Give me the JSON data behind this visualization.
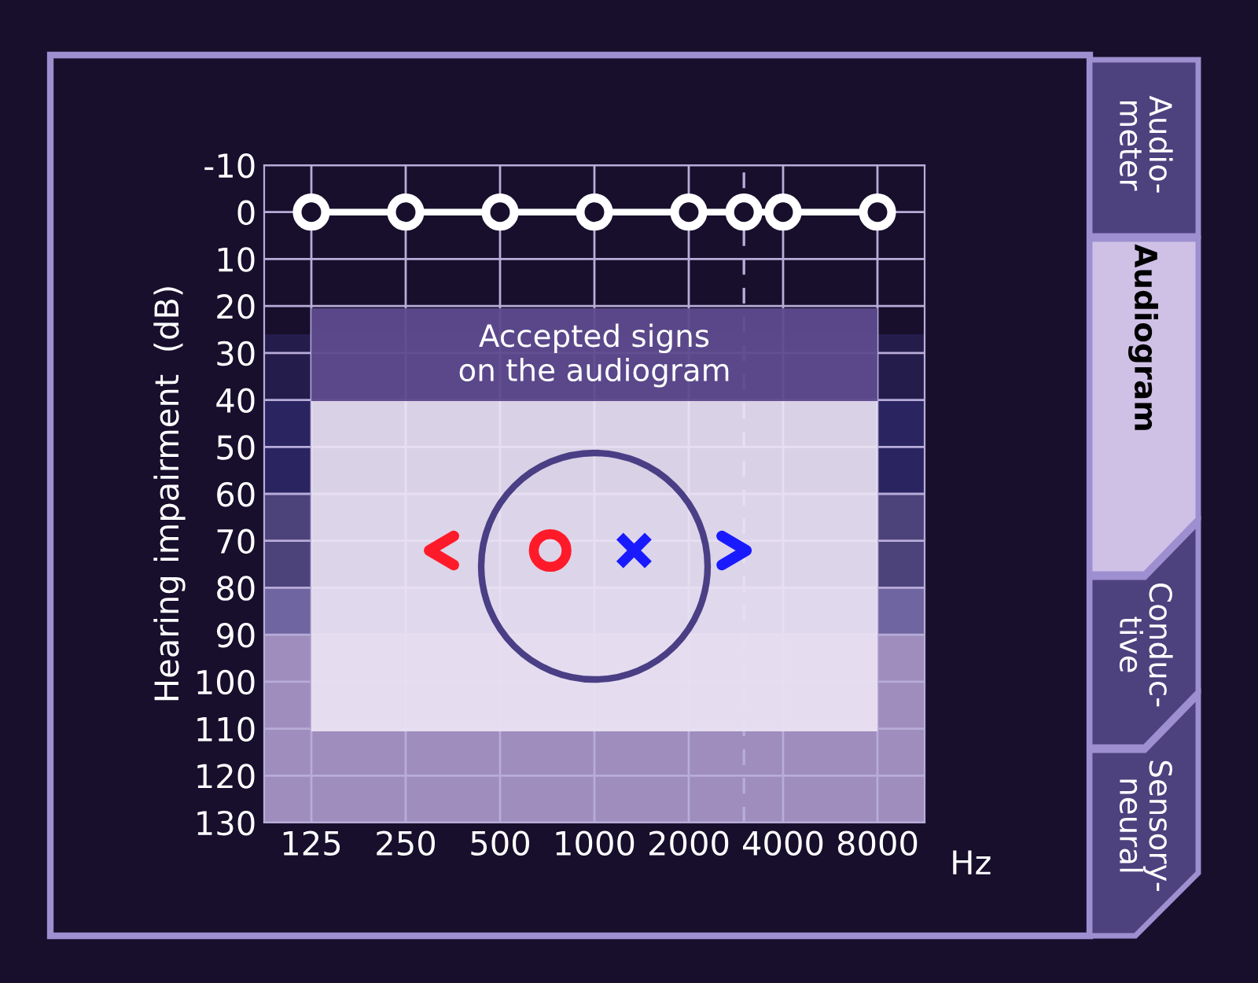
{
  "chart_data": {
    "type": "line",
    "ylabel": "Hearing impairment  (dB)",
    "xlabel": "Hz",
    "x": [
      125,
      250,
      500,
      1000,
      2000,
      3000,
      4000,
      8000
    ],
    "series": [
      {
        "color": "#ffffff",
        "values": [
          0,
          0,
          0,
          0,
          0,
          0,
          0,
          0
        ]
      }
    ],
    "log": "x",
    "xlim": [
      88.4,
      11314
    ],
    "xticks": [
      125,
      250,
      500,
      1000,
      2000,
      4000,
      8000
    ],
    "ylim": [
      130,
      -10
    ],
    "yticks": [
      -10,
      0,
      10,
      20,
      30,
      40,
      50,
      60,
      70,
      80,
      90,
      100,
      110,
      120,
      130
    ],
    "grid": true,
    "marker": "circle",
    "line_style": "solid",
    "ref_lines": [
      {
        "axis": "x",
        "value": 3000,
        "line_style": "dashed",
        "color": "#b8acd8"
      }
    ],
    "bands": [
      {
        "axis": "y",
        "from": 26,
        "to": 40,
        "color": "#241d4c"
      },
      {
        "axis": "y",
        "from": 40,
        "to": 60,
        "color": "#2a2560"
      },
      {
        "axis": "y",
        "from": 60,
        "to": 80,
        "color": "#4b4379"
      },
      {
        "axis": "y",
        "from": 80,
        "to": 90,
        "color": "#6f66a1"
      },
      {
        "axis": "y",
        "from": 90,
        "to": 130,
        "color": "#9e8dbd"
      }
    ],
    "annotations": [
      "Accepted signs\non the audiogram",
      "Audio-\nmeter",
      "Audiogram",
      "Conduc-\ntive",
      "Sensory-\nneural"
    ]
  }
}
